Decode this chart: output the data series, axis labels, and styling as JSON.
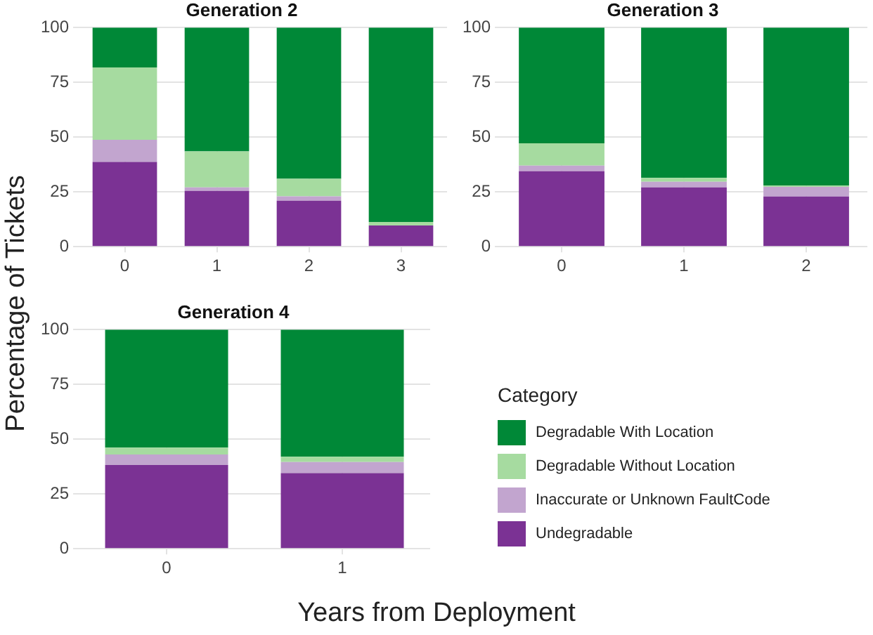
{
  "chart_data": [
    {
      "type": "bar",
      "title": "Generation 2",
      "categories": [
        "0",
        "1",
        "2",
        "3"
      ],
      "stacked": true,
      "ylim": [
        0,
        100
      ],
      "yticks": [
        0,
        25,
        50,
        75,
        100
      ],
      "grid": true,
      "legend": false,
      "series": [
        {
          "color": "#7b3294",
          "values": [
            38.7,
            25.5,
            21,
            9.7
          ]
        },
        {
          "color": "#c2a5cf",
          "values": [
            10.1,
            1.6,
            2,
            0
          ]
        },
        {
          "color": "#a6dba0",
          "values": [
            33,
            16.4,
            8,
            1.6
          ]
        },
        {
          "color": "#008837",
          "values": [
            18.2,
            56.5,
            69,
            88.7
          ]
        }
      ]
    },
    {
      "type": "bar",
      "title": "Generation 3",
      "categories": [
        "0",
        "1",
        "2"
      ],
      "stacked": true,
      "ylim": [
        0,
        100
      ],
      "yticks": [
        0,
        25,
        50,
        75,
        100
      ],
      "grid": true,
      "legend": false,
      "series": [
        {
          "color": "#7b3294",
          "values": [
            34.4,
            27.1,
            22.9
          ]
        },
        {
          "color": "#c2a5cf",
          "values": [
            2.6,
            2.5,
            4.4
          ]
        },
        {
          "color": "#a6dba0",
          "values": [
            10.2,
            1.8,
            0.6
          ]
        },
        {
          "color": "#008837",
          "values": [
            52.8,
            68.6,
            72.1
          ]
        }
      ]
    },
    {
      "type": "bar",
      "title": "Generation 4",
      "categories": [
        "0",
        "1"
      ],
      "stacked": true,
      "ylim": [
        0,
        100
      ],
      "yticks": [
        0,
        25,
        50,
        75,
        100
      ],
      "grid": true,
      "legend": "right",
      "legend_title": "Category",
      "xlabel": "Years from Deployment",
      "ylabel": "Percentage of Tickets",
      "series": [
        {
          "name": "Undegradable",
          "color": "#7b3294",
          "values": [
            38.2,
            34.5
          ]
        },
        {
          "name": "Inaccurate or Unknown FaultCode",
          "color": "#c2a5cf",
          "values": [
            4.8,
            5.1
          ]
        },
        {
          "name": "Degradable Without Location",
          "color": "#a6dba0",
          "values": [
            3.1,
            2.4
          ]
        },
        {
          "name": "Degradable With Location",
          "color": "#008837",
          "values": [
            53.9,
            58
          ]
        }
      ]
    }
  ]
}
